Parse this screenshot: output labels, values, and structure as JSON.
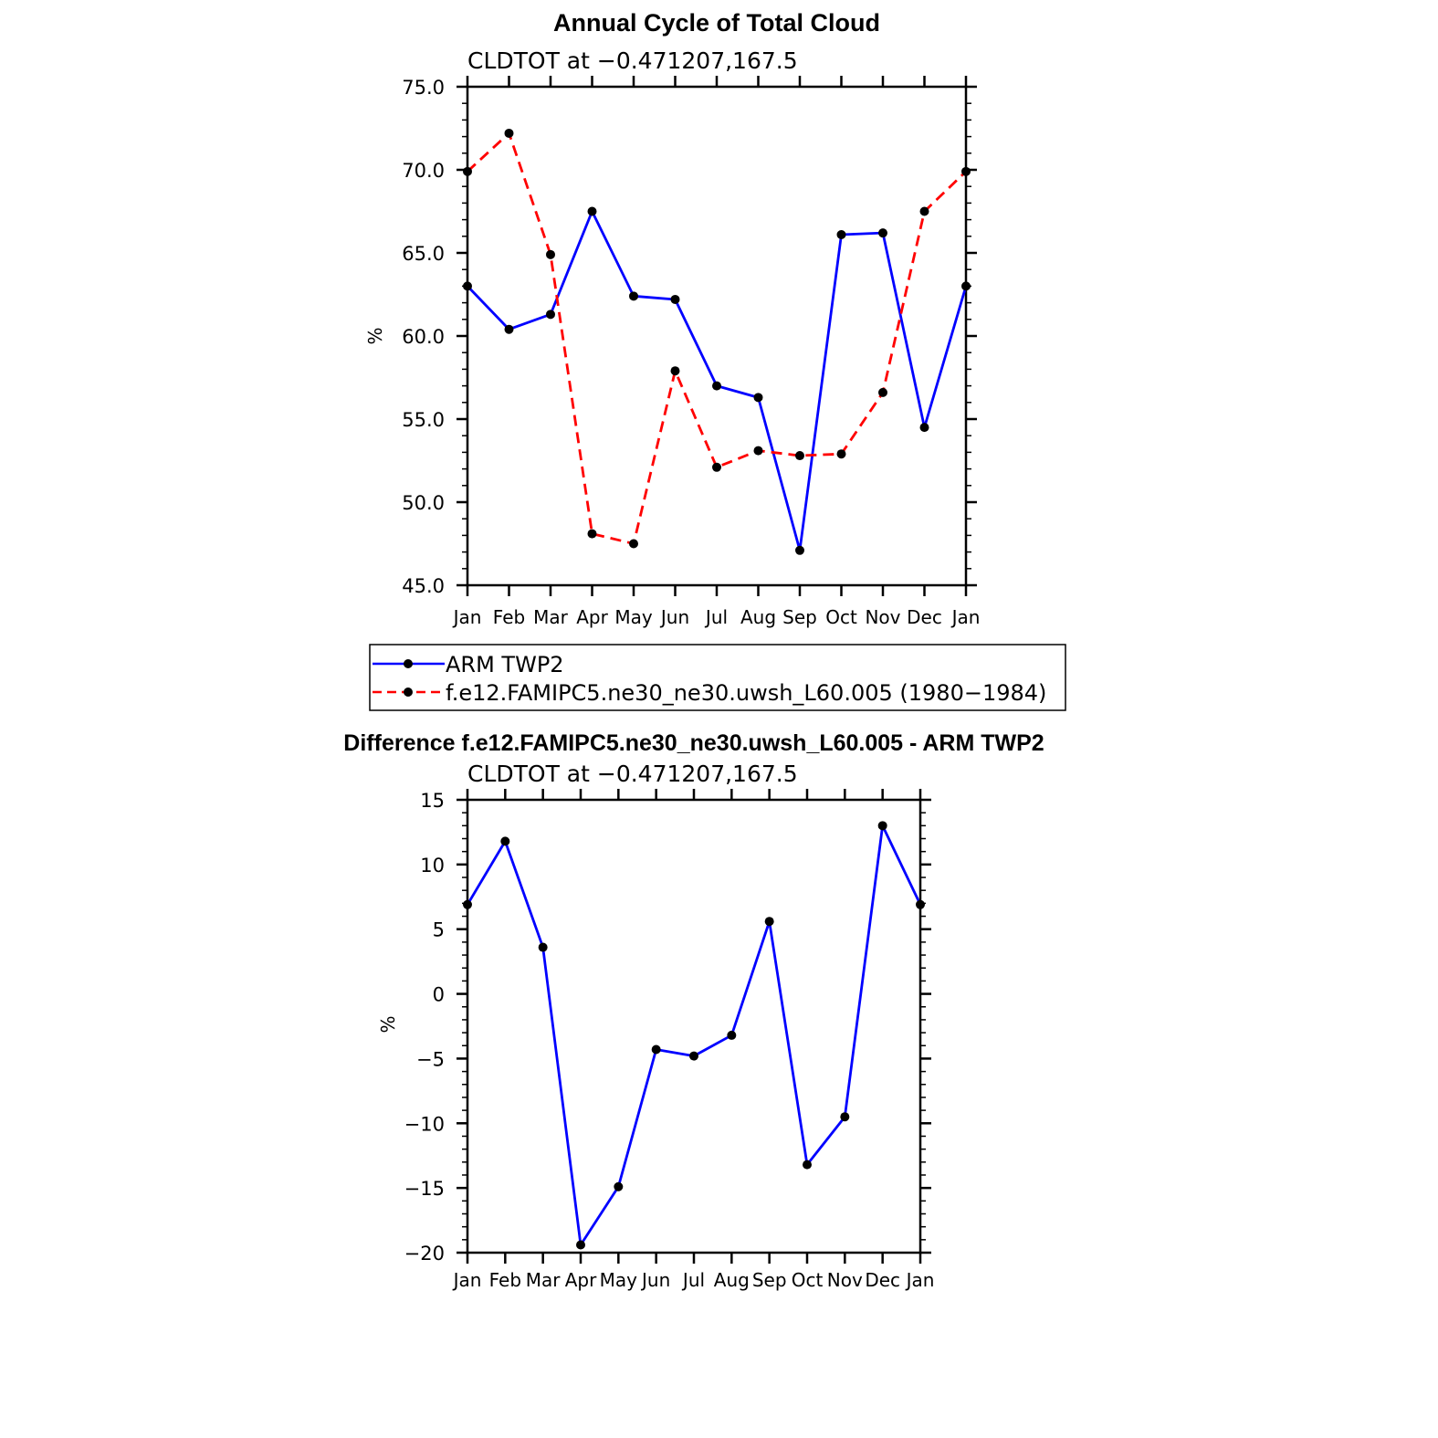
{
  "chart_data": [
    {
      "type": "line",
      "title": "Annual Cycle of Total Cloud",
      "subtitle": "CLDTOT at −0.471207,167.5",
      "ylabel": "%",
      "ylim": [
        45,
        75
      ],
      "yticks": [
        45,
        50,
        55,
        60,
        65,
        70,
        75
      ],
      "ytick_labels": [
        "45.0",
        "50.0",
        "55.0",
        "60.0",
        "65.0",
        "70.0",
        "75.0"
      ],
      "categories": [
        "Jan",
        "Feb",
        "Mar",
        "Apr",
        "May",
        "Jun",
        "Jul",
        "Aug",
        "Sep",
        "Oct",
        "Nov",
        "Dec",
        "Jan"
      ],
      "series": [
        {
          "name": "ARM TWP2",
          "color": "#0000ff",
          "dash": "solid",
          "values": [
            63.0,
            60.4,
            61.3,
            67.5,
            62.4,
            62.2,
            57.0,
            56.3,
            47.1,
            66.1,
            66.2,
            54.5,
            63.0
          ]
        },
        {
          "name": "f.e12.FAMIPC5.ne30_ne30.uwsh_L60.005 (1980−1984)",
          "color": "#ff0000",
          "dash": "dashed",
          "values": [
            69.9,
            72.2,
            64.9,
            48.1,
            47.5,
            57.9,
            52.1,
            53.1,
            52.8,
            52.9,
            56.6,
            67.5,
            69.9
          ]
        }
      ],
      "legend": "below"
    },
    {
      "type": "line",
      "title": "Difference f.e12.FAMIPC5.ne30_ne30.uwsh_L60.005 - ARM TWP2",
      "subtitle": "CLDTOT at −0.471207,167.5",
      "ylabel": "%",
      "ylim": [
        -20,
        15
      ],
      "yticks": [
        -20,
        -15,
        -10,
        -5,
        0,
        5,
        10,
        15
      ],
      "ytick_labels": [
        "−20",
        "−15",
        "−10",
        "−5",
        "0",
        "5",
        "10",
        "15"
      ],
      "categories": [
        "Jan",
        "Feb",
        "Mar",
        "Apr",
        "May",
        "Jun",
        "Jul",
        "Aug",
        "Sep",
        "Oct",
        "Nov",
        "Dec",
        "Jan"
      ],
      "series": [
        {
          "name": "Difference",
          "color": "#0000ff",
          "dash": "solid",
          "values": [
            6.9,
            11.8,
            3.6,
            -19.4,
            -14.9,
            -4.3,
            -4.8,
            -3.2,
            5.6,
            -13.2,
            -9.5,
            13.0,
            6.9
          ]
        }
      ]
    }
  ]
}
